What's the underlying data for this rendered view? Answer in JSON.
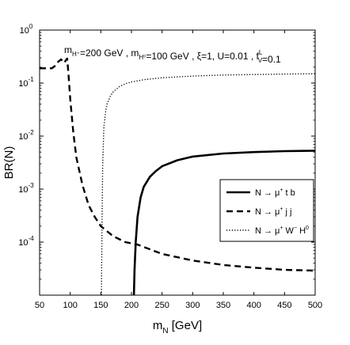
{
  "chart_data": {
    "type": "line",
    "xlabel": {
      "main": "m",
      "sub": "N",
      "tail": " [GeV]"
    },
    "ylabel": "BR(N)",
    "xlim": [
      50,
      500
    ],
    "ylim_log10": [
      -5,
      0
    ],
    "yscale": "log",
    "x_ticks": [
      "50",
      "100",
      "150",
      "200",
      "250",
      "300",
      "350",
      "400",
      "450",
      "500"
    ],
    "y_ticks": [
      {
        "base": "10",
        "exp": "0"
      },
      {
        "base": "10",
        "exp": "-1"
      },
      {
        "base": "10",
        "exp": "-2"
      },
      {
        "base": "10",
        "exp": "-3"
      },
      {
        "base": "10",
        "exp": "-4"
      }
    ],
    "annotation": [
      {
        "t": "m"
      },
      {
        "t": "H⁺",
        "sub": true
      },
      {
        "t": "=200 GeV , m"
      },
      {
        "t": "H⁰",
        "sub": true
      },
      {
        "t": "=100 GeV , ξ=1, U=0.01 , f"
      },
      {
        "t": "L",
        "sup": true
      },
      {
        "t": "V",
        "subafter": true
      },
      {
        "t": "=0.1"
      }
    ],
    "legend_placement": "right-middle",
    "series": [
      {
        "name": "N → μ⁺ t b",
        "style": "solid",
        "color": "#000000",
        "x": [
          204,
          205,
          207,
          210,
          215,
          220,
          230,
          240,
          250,
          275,
          300,
          350,
          400,
          450,
          500
        ],
        "y": [
          1e-05,
          3e-05,
          0.0001,
          0.0003,
          0.0007,
          0.0011,
          0.0017,
          0.0022,
          0.0027,
          0.0035,
          0.0041,
          0.0047,
          0.005,
          0.0052,
          0.0053
        ]
      },
      {
        "name": "N → μ⁺ j j",
        "style": "dashed",
        "color": "#000000",
        "x": [
          50,
          60,
          70,
          75,
          80,
          85,
          90,
          95,
          97,
          100,
          105,
          110,
          120,
          130,
          140,
          150,
          170,
          190,
          210,
          250,
          300,
          350,
          400,
          450,
          500
        ],
        "y": [
          0.19,
          0.19,
          0.19,
          0.21,
          0.25,
          0.28,
          0.24,
          0.29,
          0.16,
          0.05,
          0.012,
          0.004,
          0.0012,
          0.0005,
          0.0003,
          0.0002,
          0.00013,
          0.0001,
          9e-05,
          6e-05,
          4.5e-05,
          3.7e-05,
          3.3e-05,
          3e-05,
          2.9e-05
        ]
      },
      {
        "name": "N → μ⁺ W⁻ H⁰",
        "style": "dotted",
        "color": "#000000",
        "x": [
          151,
          152,
          153,
          155,
          158,
          160,
          165,
          170,
          180,
          190,
          200,
          220,
          250,
          300,
          350,
          400,
          450,
          500
        ],
        "y": [
          1e-05,
          0.0003,
          0.003,
          0.015,
          0.03,
          0.04,
          0.055,
          0.068,
          0.085,
          0.097,
          0.105,
          0.116,
          0.126,
          0.136,
          0.142,
          0.145,
          0.148,
          0.15
        ]
      }
    ],
    "legend_labels": [
      {
        "pre": "N → μ",
        "sup": "+",
        "post": " t b"
      },
      {
        "pre": "N → μ",
        "sup": "+",
        "post": " j j"
      },
      {
        "pre": "N → μ",
        "sup": "+",
        "mid": " W",
        "sup2": "−",
        "post": " H",
        "sup3": "0"
      }
    ],
    "grid": false
  }
}
